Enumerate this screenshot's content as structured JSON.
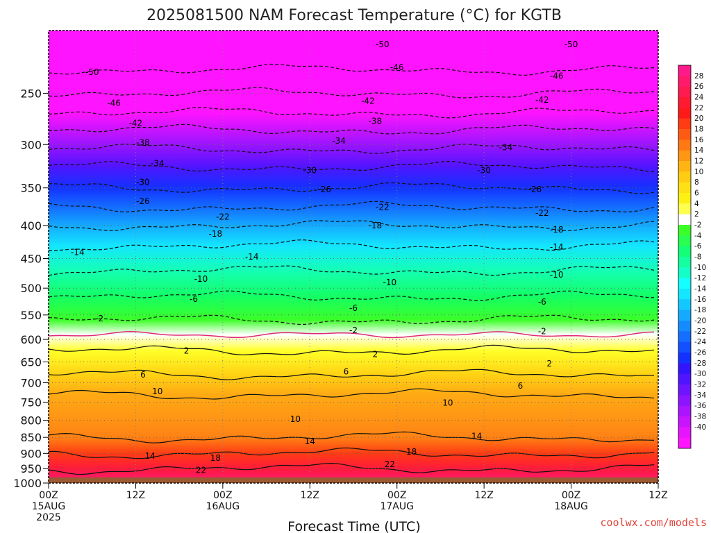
{
  "chart_data": {
    "type": "heatmap",
    "title": "2025081500 NAM Forecast Temperature (°C) for KGTB",
    "xlabel": "Forecast Time (UTC)",
    "ylabel": "",
    "yscale": "log",
    "ylim": [
      1000,
      200
    ],
    "y_ticks": [
      250,
      300,
      350,
      400,
      450,
      500,
      550,
      600,
      650,
      700,
      750,
      800,
      850,
      900,
      950,
      1000
    ],
    "x_range_hours": [
      0,
      84
    ],
    "x_ticks": [
      {
        "hour": 0,
        "lines": [
          "00Z",
          "15AUG",
          "2025"
        ]
      },
      {
        "hour": 12,
        "lines": [
          "12Z"
        ]
      },
      {
        "hour": 24,
        "lines": [
          "00Z",
          "16AUG"
        ]
      },
      {
        "hour": 36,
        "lines": [
          "12Z"
        ]
      },
      {
        "hour": 48,
        "lines": [
          "00Z",
          "17AUG"
        ]
      },
      {
        "hour": 60,
        "lines": [
          "12Z"
        ]
      },
      {
        "hour": 72,
        "lines": [
          "00Z",
          "18AUG"
        ]
      },
      {
        "hour": 84,
        "lines": [
          "12Z"
        ]
      }
    ],
    "grid": true,
    "surface_pressure": 980,
    "temperature_profile": [
      {
        "p": 200,
        "t": -56
      },
      {
        "p": 220,
        "t": -52
      },
      {
        "p": 235,
        "t": -49
      },
      {
        "p": 250,
        "t": -46
      },
      {
        "p": 268,
        "t": -42
      },
      {
        "p": 285,
        "t": -38
      },
      {
        "p": 300,
        "t": -35
      },
      {
        "p": 315,
        "t": -32
      },
      {
        "p": 330,
        "t": -29
      },
      {
        "p": 350,
        "t": -26
      },
      {
        "p": 375,
        "t": -22
      },
      {
        "p": 400,
        "t": -18
      },
      {
        "p": 430,
        "t": -14
      },
      {
        "p": 470,
        "t": -10
      },
      {
        "p": 515,
        "t": -6
      },
      {
        "p": 560,
        "t": -2
      },
      {
        "p": 590,
        "t": 0
      },
      {
        "p": 625,
        "t": 2
      },
      {
        "p": 680,
        "t": 6
      },
      {
        "p": 730,
        "t": 10
      },
      {
        "p": 790,
        "t": 12
      },
      {
        "p": 850,
        "t": 14
      },
      {
        "p": 900,
        "t": 18
      },
      {
        "p": 950,
        "t": 22
      },
      {
        "p": 980,
        "t": 24
      }
    ],
    "contour_labels": [
      {
        "hour": 46,
        "p": 210,
        "text": "-50"
      },
      {
        "hour": 72,
        "p": 210,
        "text": "-50"
      },
      {
        "hour": 6,
        "p": 232,
        "text": "-50"
      },
      {
        "hour": 48,
        "p": 228,
        "text": "-46"
      },
      {
        "hour": 70,
        "p": 235,
        "text": "-46"
      },
      {
        "hour": 9,
        "p": 259,
        "text": "-46"
      },
      {
        "hour": 44,
        "p": 257,
        "text": "-42"
      },
      {
        "hour": 68,
        "p": 256,
        "text": "-42"
      },
      {
        "hour": 12,
        "p": 278,
        "text": "-42"
      },
      {
        "hour": 45,
        "p": 276,
        "text": "-38"
      },
      {
        "hour": 13,
        "p": 298,
        "text": "-38"
      },
      {
        "hour": 40,
        "p": 296,
        "text": "-34"
      },
      {
        "hour": 63,
        "p": 303,
        "text": "-34"
      },
      {
        "hour": 15,
        "p": 321,
        "text": "-34"
      },
      {
        "hour": 36,
        "p": 329,
        "text": "-30"
      },
      {
        "hour": 60,
        "p": 329,
        "text": "-30"
      },
      {
        "hour": 13,
        "p": 343,
        "text": "-30"
      },
      {
        "hour": 38,
        "p": 352,
        "text": "-26"
      },
      {
        "hour": 67,
        "p": 352,
        "text": "-26"
      },
      {
        "hour": 13,
        "p": 367,
        "text": "-26"
      },
      {
        "hour": 46,
        "p": 375,
        "text": "-22"
      },
      {
        "hour": 68,
        "p": 383,
        "text": "-22"
      },
      {
        "hour": 24,
        "p": 388,
        "text": "-22"
      },
      {
        "hour": 45,
        "p": 400,
        "text": "-18"
      },
      {
        "hour": 70,
        "p": 406,
        "text": "-18"
      },
      {
        "hour": 23,
        "p": 412,
        "text": "-18"
      },
      {
        "hour": 70,
        "p": 432,
        "text": "-14"
      },
      {
        "hour": 4,
        "p": 440,
        "text": "-14"
      },
      {
        "hour": 28,
        "p": 447,
        "text": "-14"
      },
      {
        "hour": 70,
        "p": 477,
        "text": "-10"
      },
      {
        "hour": 21,
        "p": 484,
        "text": "-10"
      },
      {
        "hour": 47,
        "p": 490,
        "text": "-10"
      },
      {
        "hour": 20,
        "p": 520,
        "text": "-6"
      },
      {
        "hour": 68,
        "p": 525,
        "text": "-6"
      },
      {
        "hour": 42,
        "p": 537,
        "text": "-6"
      },
      {
        "hour": 7,
        "p": 557,
        "text": "-2"
      },
      {
        "hour": 42,
        "p": 581,
        "text": "-2"
      },
      {
        "hour": 68,
        "p": 583,
        "text": "-2"
      },
      {
        "hour": 19,
        "p": 625,
        "text": "2"
      },
      {
        "hour": 45,
        "p": 633,
        "text": "2"
      },
      {
        "hour": 69,
        "p": 654,
        "text": "2"
      },
      {
        "hour": 13,
        "p": 680,
        "text": "6"
      },
      {
        "hour": 41,
        "p": 673,
        "text": "6"
      },
      {
        "hour": 65,
        "p": 708,
        "text": "6"
      },
      {
        "hour": 15,
        "p": 722,
        "text": "10"
      },
      {
        "hour": 34,
        "p": 797,
        "text": "10"
      },
      {
        "hour": 55,
        "p": 752,
        "text": "10"
      },
      {
        "hour": 36,
        "p": 862,
        "text": "14"
      },
      {
        "hour": 59,
        "p": 847,
        "text": "14"
      },
      {
        "hour": 14,
        "p": 908,
        "text": "14"
      },
      {
        "hour": 23,
        "p": 915,
        "text": "18"
      },
      {
        "hour": 50,
        "p": 895,
        "text": "18"
      },
      {
        "hour": 21,
        "p": 955,
        "text": "22"
      },
      {
        "hour": 47,
        "p": 935,
        "text": "22"
      }
    ]
  },
  "colorbar": {
    "labels": [
      "28",
      "26",
      "24",
      "22",
      "20",
      "18",
      "16",
      "14",
      "12",
      "10",
      "8",
      "6",
      "4",
      "2",
      "-2",
      "-4",
      "-6",
      "-8",
      "-10",
      "-12",
      "-14",
      "-16",
      "-18",
      "-20",
      "-22",
      "-24",
      "-26",
      "-28",
      "-30",
      "-32",
      "-34",
      "-36",
      "-38",
      "-40"
    ],
    "colors": [
      "#ff1a8c",
      "#ff1a6e",
      "#ff1a50",
      "#ff1a32",
      "#ff1a1a",
      "#ff3c14",
      "#ff5a14",
      "#ff7814",
      "#ff9614",
      "#ffb414",
      "#ffcc14",
      "#ffe014",
      "#fff014",
      "#ffff50",
      "#ffffff",
      "#3cff28",
      "#28ff50",
      "#14ff78",
      "#14ffa0",
      "#14ffc8",
      "#14ffff",
      "#14e6ff",
      "#14c8ff",
      "#14aaff",
      "#148cff",
      "#146eff",
      "#1450ff",
      "#1432ff",
      "#3214ff",
      "#5014ff",
      "#6e14ff",
      "#8c14ff",
      "#aa14ff",
      "#c814ff",
      "#e614ff",
      "#ff14ff"
    ]
  },
  "credit": "coolwx.com/models"
}
